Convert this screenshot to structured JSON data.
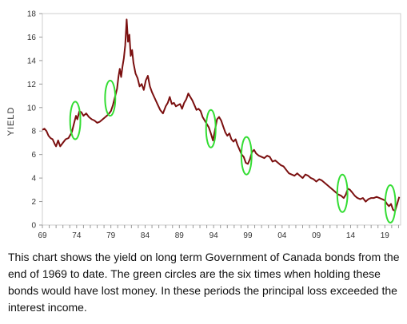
{
  "chart_data": {
    "type": "line",
    "title": "",
    "xlabel": "",
    "ylabel": "YIELD",
    "xlim": [
      1969,
      2021.3
    ],
    "ylim": [
      0,
      18
    ],
    "yticks": [
      0,
      2,
      4,
      6,
      8,
      10,
      12,
      14,
      16,
      18
    ],
    "xtick_values": [
      1969,
      1974,
      1979,
      1984,
      1989,
      1994,
      1999,
      2004,
      2009,
      2014,
      2019
    ],
    "xtick_labels": [
      "69",
      "74",
      "79",
      "84",
      "89",
      "94",
      "99",
      "04",
      "09",
      "14",
      "19"
    ],
    "grid": false,
    "series": [
      {
        "name": "",
        "color": "#7b1010",
        "x": [
          1969.0,
          1969.3,
          1969.6,
          1969.9,
          1970.2,
          1970.5,
          1970.8,
          1971.0,
          1971.3,
          1971.6,
          1972.0,
          1972.4,
          1972.8,
          1973.0,
          1973.3,
          1973.6,
          1973.9,
          1974.1,
          1974.4,
          1974.7,
          1975.0,
          1975.4,
          1975.8,
          1976.2,
          1976.6,
          1977.0,
          1977.4,
          1977.8,
          1978.2,
          1978.6,
          1979.0,
          1979.3,
          1979.6,
          1979.9,
          1980.1,
          1980.3,
          1980.5,
          1980.7,
          1980.9,
          1981.1,
          1981.3,
          1981.5,
          1981.7,
          1981.9,
          1982.1,
          1982.3,
          1982.6,
          1982.9,
          1983.2,
          1983.5,
          1983.8,
          1984.1,
          1984.4,
          1984.7,
          1985.0,
          1985.4,
          1985.8,
          1986.2,
          1986.6,
          1987.0,
          1987.3,
          1987.6,
          1987.9,
          1988.2,
          1988.5,
          1988.8,
          1989.1,
          1989.4,
          1989.7,
          1990.0,
          1990.3,
          1990.6,
          1990.9,
          1991.2,
          1991.5,
          1991.8,
          1992.1,
          1992.4,
          1992.7,
          1993.0,
          1993.3,
          1993.6,
          1993.9,
          1994.2,
          1994.5,
          1994.8,
          1995.1,
          1995.4,
          1995.7,
          1996.0,
          1996.3,
          1996.6,
          1996.9,
          1997.2,
          1997.5,
          1997.8,
          1998.1,
          1998.4,
          1998.7,
          1999.0,
          1999.3,
          1999.6,
          1999.9,
          2000.2,
          2000.6,
          2001.0,
          2001.4,
          2001.8,
          2002.2,
          2002.6,
          2003.0,
          2003.4,
          2003.8,
          2004.2,
          2004.6,
          2005.0,
          2005.4,
          2005.8,
          2006.2,
          2006.6,
          2007.0,
          2007.4,
          2007.8,
          2008.2,
          2008.6,
          2009.0,
          2009.4,
          2009.8,
          2010.2,
          2010.6,
          2011.0,
          2011.4,
          2011.8,
          2012.2,
          2012.6,
          2013.0,
          2013.3,
          2013.6,
          2013.9,
          2014.2,
          2014.6,
          2015.0,
          2015.4,
          2015.8,
          2016.2,
          2016.6,
          2017.0,
          2017.4,
          2017.8,
          2018.2,
          2018.6,
          2019.0,
          2019.3,
          2019.6,
          2019.9,
          2020.2,
          2020.5,
          2020.8,
          2021.1
        ],
        "y": [
          8.1,
          8.2,
          8.0,
          7.6,
          7.4,
          7.3,
          6.9,
          6.7,
          7.2,
          6.7,
          7.0,
          7.3,
          7.4,
          7.6,
          7.9,
          8.6,
          9.3,
          9.0,
          9.7,
          9.6,
          9.3,
          9.5,
          9.2,
          9.0,
          8.9,
          8.7,
          8.8,
          9.0,
          9.2,
          9.4,
          9.7,
          10.2,
          10.9,
          11.6,
          12.6,
          13.3,
          12.6,
          13.5,
          14.2,
          15.3,
          17.5,
          15.6,
          16.2,
          14.4,
          14.9,
          13.8,
          12.9,
          12.5,
          11.8,
          12.0,
          11.5,
          12.3,
          12.7,
          11.8,
          11.3,
          10.8,
          10.3,
          9.8,
          9.5,
          10.1,
          10.4,
          10.9,
          10.3,
          10.4,
          10.1,
          10.2,
          10.3,
          9.9,
          10.4,
          10.7,
          11.2,
          10.9,
          10.6,
          10.2,
          9.8,
          9.9,
          9.7,
          9.2,
          8.9,
          8.6,
          8.3,
          7.8,
          7.2,
          8.1,
          9.0,
          9.2,
          8.9,
          8.4,
          7.9,
          7.6,
          7.8,
          7.3,
          7.1,
          7.3,
          6.8,
          6.4,
          6.0,
          5.8,
          5.3,
          5.2,
          5.6,
          6.2,
          6.4,
          6.1,
          5.9,
          5.8,
          5.7,
          5.9,
          5.8,
          5.4,
          5.5,
          5.3,
          5.1,
          5.0,
          4.7,
          4.4,
          4.3,
          4.2,
          4.4,
          4.2,
          4.0,
          4.3,
          4.2,
          4.0,
          3.9,
          3.7,
          3.9,
          3.8,
          3.6,
          3.4,
          3.2,
          3.0,
          2.8,
          2.6,
          2.5,
          2.3,
          2.6,
          3.1,
          3.0,
          2.8,
          2.5,
          2.3,
          2.2,
          2.3,
          2.0,
          2.2,
          2.3,
          2.3,
          2.4,
          2.3,
          2.2,
          2.1,
          1.8,
          1.6,
          1.8,
          1.3,
          1.2,
          1.8,
          2.4
        ]
      }
    ],
    "annotations": [
      {
        "shape": "ellipse",
        "color": "#33dd33",
        "x": 1973.8,
        "y": 8.9,
        "rx_years": 0.75,
        "ry_yield": 1.6
      },
      {
        "shape": "ellipse",
        "color": "#33dd33",
        "x": 1978.9,
        "y": 10.8,
        "rx_years": 0.75,
        "ry_yield": 1.5
      },
      {
        "shape": "ellipse",
        "color": "#33dd33",
        "x": 1993.6,
        "y": 8.2,
        "rx_years": 0.7,
        "ry_yield": 1.6
      },
      {
        "shape": "ellipse",
        "color": "#33dd33",
        "x": 1998.8,
        "y": 5.9,
        "rx_years": 0.75,
        "ry_yield": 1.6
      },
      {
        "shape": "ellipse",
        "color": "#33dd33",
        "x": 2012.8,
        "y": 2.7,
        "rx_years": 0.75,
        "ry_yield": 1.6
      },
      {
        "shape": "ellipse",
        "color": "#33dd33",
        "x": 2019.8,
        "y": 1.8,
        "rx_years": 0.75,
        "ry_yield": 1.6
      }
    ]
  },
  "caption": "This chart shows the yield on long term Government of Canada bonds from the end of 1969 to date. The green circles are the six times when holding these bonds would have lost money. In these periods the principal loss exceeded the interest income."
}
